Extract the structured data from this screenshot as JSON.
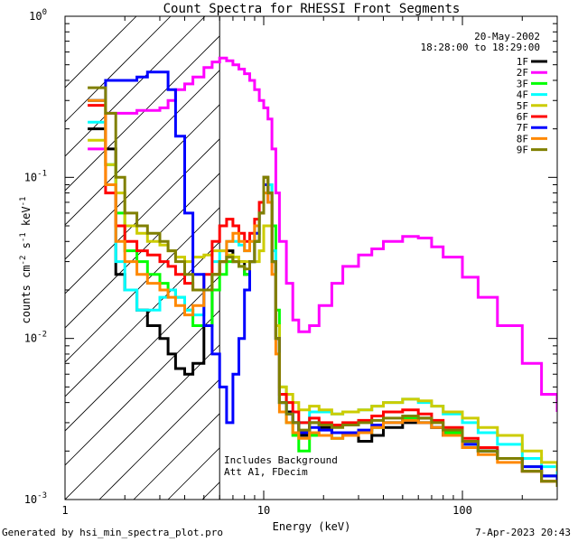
{
  "chart_data": {
    "type": "line",
    "title": "Count Spectra for RHESSI Front Segments",
    "date": "20-May-2002",
    "time_range": "18:28:00 to 18:29:00",
    "xlabel": "Energy (keV)",
    "ylabel": "counts cm-2 s-1 keV-1",
    "xscale": "log",
    "yscale": "log",
    "xlim": [
      1,
      300
    ],
    "ylim": [
      0.001,
      1
    ],
    "x_tick_labels": [
      "1",
      "10",
      "100"
    ],
    "y_tick_labels": [
      "10^-3",
      "10^-2",
      "10^-1",
      "10^0"
    ],
    "annotations": [
      "Includes Background",
      "Att A1, FDecim"
    ],
    "attenuator_energy_keV": 6.0,
    "energy_bins_keV": [
      1.3,
      1.6,
      1.8,
      2.0,
      2.3,
      2.6,
      3.0,
      3.3,
      3.6,
      4.0,
      4.4,
      5.0,
      5.5,
      6.0,
      6.5,
      7.0,
      7.5,
      8.0,
      8.5,
      9.0,
      9.5,
      10.0,
      10.5,
      11.0,
      11.5,
      12.0,
      13.0,
      14.0,
      15.0,
      17.0,
      19.0,
      22.0,
      25.0,
      30.0,
      35.0,
      40.0,
      50.0,
      60.0,
      70.0,
      80.0,
      100.0,
      120.0,
      150.0,
      200.0,
      250.0,
      300.0
    ],
    "series": [
      {
        "name": "1F",
        "color": "#000000",
        "values": [
          0.2,
          0.15,
          0.025,
          0.02,
          0.015,
          0.012,
          0.01,
          0.008,
          0.0065,
          0.006,
          0.007,
          0.012,
          0.025,
          0.03,
          0.035,
          0.03,
          0.03,
          0.025,
          0.03,
          0.04,
          0.06,
          0.09,
          0.08,
          0.03,
          0.01,
          0.004,
          0.0035,
          0.003,
          0.0025,
          0.003,
          0.0028,
          0.0026,
          0.0025,
          0.0023,
          0.0025,
          0.0028,
          0.003,
          0.0032,
          0.0028,
          0.0025,
          0.0022,
          0.002,
          0.0018,
          0.0015,
          0.0014,
          0.0013
        ]
      },
      {
        "name": "2F",
        "color": "#ff00ff",
        "values": [
          0.15,
          0.25,
          0.25,
          0.25,
          0.26,
          0.26,
          0.27,
          0.3,
          0.35,
          0.38,
          0.42,
          0.48,
          0.52,
          0.55,
          0.53,
          0.5,
          0.47,
          0.44,
          0.4,
          0.35,
          0.3,
          0.27,
          0.23,
          0.15,
          0.08,
          0.04,
          0.022,
          0.013,
          0.011,
          0.012,
          0.016,
          0.022,
          0.028,
          0.033,
          0.036,
          0.04,
          0.043,
          0.042,
          0.037,
          0.032,
          0.024,
          0.018,
          0.012,
          0.007,
          0.0045,
          0.0035
        ]
      },
      {
        "name": "3F",
        "color": "#00ff00",
        "values": [
          0.3,
          0.12,
          0.06,
          0.035,
          0.03,
          0.025,
          0.022,
          0.02,
          0.018,
          0.015,
          0.012,
          0.012,
          0.02,
          0.025,
          0.03,
          0.032,
          0.028,
          0.025,
          0.03,
          0.04,
          0.06,
          0.1,
          0.09,
          0.05,
          0.015,
          0.005,
          0.003,
          0.0025,
          0.002,
          0.0025,
          0.0025,
          0.0024,
          0.0025,
          0.0026,
          0.0028,
          0.003,
          0.0032,
          0.003,
          0.0028,
          0.0026,
          0.0022,
          0.002,
          0.0018,
          0.0016,
          0.0014,
          0.0013
        ]
      },
      {
        "name": "4F",
        "color": "#00ffff",
        "values": [
          0.22,
          0.12,
          0.03,
          0.02,
          0.015,
          0.015,
          0.018,
          0.02,
          0.018,
          0.015,
          0.014,
          0.02,
          0.03,
          0.035,
          0.04,
          0.04,
          0.038,
          0.035,
          0.04,
          0.045,
          0.06,
          0.1,
          0.09,
          0.035,
          0.01,
          0.004,
          0.0034,
          0.003,
          0.003,
          0.0035,
          0.0035,
          0.0034,
          0.0035,
          0.0036,
          0.0038,
          0.004,
          0.0042,
          0.004,
          0.0038,
          0.0034,
          0.003,
          0.0026,
          0.0022,
          0.0018,
          0.0016,
          0.0014
        ]
      },
      {
        "name": "5F",
        "color": "#cccc00",
        "values": [
          0.17,
          0.12,
          0.08,
          0.05,
          0.045,
          0.04,
          0.038,
          0.035,
          0.032,
          0.03,
          0.032,
          0.033,
          0.035,
          0.035,
          0.033,
          0.032,
          0.03,
          0.03,
          0.03,
          0.03,
          0.035,
          0.05,
          0.05,
          0.03,
          0.012,
          0.005,
          0.0045,
          0.004,
          0.0036,
          0.0038,
          0.0036,
          0.0034,
          0.0035,
          0.0036,
          0.0038,
          0.004,
          0.0042,
          0.0041,
          0.0038,
          0.0035,
          0.0032,
          0.0028,
          0.0025,
          0.002,
          0.0017,
          0.0015
        ]
      },
      {
        "name": "6F",
        "color": "#ff0000",
        "values": [
          0.28,
          0.08,
          0.05,
          0.04,
          0.035,
          0.033,
          0.03,
          0.028,
          0.025,
          0.022,
          0.02,
          0.025,
          0.04,
          0.05,
          0.055,
          0.05,
          0.045,
          0.04,
          0.045,
          0.055,
          0.07,
          0.1,
          0.08,
          0.03,
          0.01,
          0.0045,
          0.004,
          0.0035,
          0.003,
          0.0032,
          0.003,
          0.0029,
          0.003,
          0.0031,
          0.0033,
          0.0035,
          0.0036,
          0.0034,
          0.0031,
          0.0028,
          0.0024,
          0.0021,
          0.0018,
          0.0015,
          0.0013,
          0.0012
        ]
      },
      {
        "name": "7F",
        "color": "#0000ff",
        "values": [
          0.3,
          0.4,
          0.4,
          0.4,
          0.42,
          0.45,
          0.45,
          0.35,
          0.18,
          0.06,
          0.025,
          0.012,
          0.008,
          0.005,
          0.003,
          0.006,
          0.01,
          0.02,
          0.03,
          0.045,
          0.06,
          0.09,
          0.07,
          0.03,
          0.01,
          0.004,
          0.0034,
          0.003,
          0.0026,
          0.0028,
          0.0027,
          0.0026,
          0.0026,
          0.0027,
          0.0029,
          0.003,
          0.0031,
          0.003,
          0.0028,
          0.0025,
          0.0022,
          0.002,
          0.0018,
          0.0016,
          0.0014,
          0.0013
        ]
      },
      {
        "name": "8F",
        "color": "#ff8800",
        "values": [
          0.3,
          0.09,
          0.04,
          0.03,
          0.025,
          0.022,
          0.02,
          0.018,
          0.016,
          0.014,
          0.016,
          0.02,
          0.025,
          0.03,
          0.04,
          0.045,
          0.04,
          0.035,
          0.04,
          0.05,
          0.06,
          0.08,
          0.07,
          0.025,
          0.008,
          0.0035,
          0.003,
          0.0026,
          0.0024,
          0.0026,
          0.0025,
          0.0024,
          0.0025,
          0.0026,
          0.0028,
          0.003,
          0.0031,
          0.003,
          0.0028,
          0.0025,
          0.0021,
          0.0019,
          0.0017,
          0.0015,
          0.0013,
          0.0012
        ]
      },
      {
        "name": "9F",
        "color": "#808000",
        "values": [
          0.36,
          0.25,
          0.1,
          0.06,
          0.05,
          0.045,
          0.04,
          0.035,
          0.03,
          0.025,
          0.02,
          0.02,
          0.025,
          0.03,
          0.032,
          0.03,
          0.028,
          0.027,
          0.03,
          0.04,
          0.06,
          0.1,
          0.08,
          0.03,
          0.01,
          0.004,
          0.0034,
          0.003,
          0.0027,
          0.003,
          0.0029,
          0.0028,
          0.0029,
          0.003,
          0.0031,
          0.0032,
          0.0033,
          0.0032,
          0.003,
          0.0027,
          0.0023,
          0.002,
          0.0018,
          0.0015,
          0.0013,
          0.0012
        ]
      }
    ]
  },
  "footer": {
    "left": "Generated by hsi_min_spectra_plot.pro",
    "right": "7-Apr-2023 20:43"
  }
}
